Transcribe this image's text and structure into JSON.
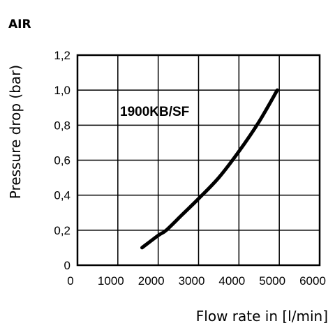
{
  "chart_data": {
    "type": "line",
    "title": "AIR",
    "xlabel": "Flow rate in [l/min]",
    "ylabel": "Pressure drop (bar)",
    "xlim": [
      0,
      6000
    ],
    "ylim": [
      0,
      1.2
    ],
    "x_ticks": [
      0,
      1000,
      2000,
      3000,
      4000,
      5000,
      6000
    ],
    "y_ticks": [
      0,
      0.2,
      0.4,
      0.6,
      0.8,
      1.0,
      1.2
    ],
    "x_tick_labels": [
      "0",
      "1000",
      "2000",
      "3000",
      "4000",
      "5000",
      "6000"
    ],
    "y_tick_labels": [
      "0",
      "0,2",
      "0,4",
      "0,6",
      "0,8",
      "1,0",
      "1,2"
    ],
    "grid": true,
    "annotation": "1900KB/SF",
    "series": [
      {
        "x": [
          1600,
          2000,
          2200,
          2600,
          3000,
          3500,
          4000,
          4500,
          4950
        ],
        "y": [
          0.1,
          0.17,
          0.2,
          0.29,
          0.38,
          0.5,
          0.65,
          0.82,
          1.0
        ],
        "color": "#000000"
      }
    ]
  }
}
